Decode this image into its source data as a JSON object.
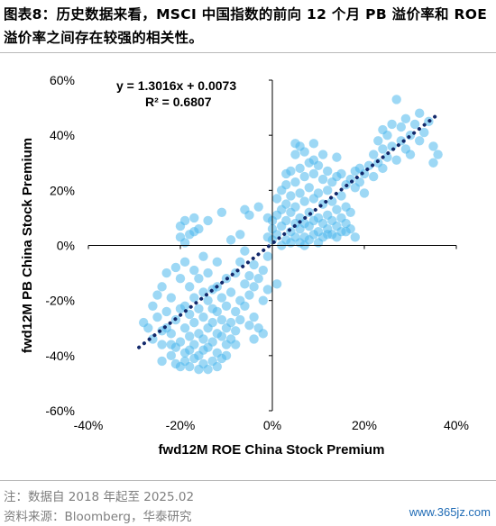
{
  "figure": {
    "title": "图表8：历史数据来看，MSCI 中国指数的前向 12 个月 PB 溢价率和 ROE 溢价率之间存在较强的相关性。"
  },
  "chart_data": {
    "type": "scatter",
    "xlabel": "fwd12M ROE China Stock Premium",
    "ylabel": "fwd12M PB China Stock Premium",
    "xlim": [
      -0.4,
      0.4
    ],
    "ylim": [
      -0.6,
      0.6
    ],
    "x_ticks": [
      -0.4,
      -0.2,
      0.0,
      0.2,
      0.4
    ],
    "y_ticks": [
      -0.6,
      -0.4,
      -0.2,
      0.0,
      0.2,
      0.4,
      0.6
    ],
    "x_tick_labels": [
      "-40%",
      "-20%",
      "0%",
      "20%",
      "40%"
    ],
    "y_tick_labels": [
      "-60%",
      "-40%",
      "-20%",
      "0%",
      "20%",
      "40%",
      "60%"
    ],
    "grid": false,
    "trendline": {
      "equation": "y = 1.3016x + 0.0073",
      "r_squared": "R² = 0.6807",
      "slope": 1.3016,
      "intercept": 0.0073,
      "x_range": [
        -0.29,
        0.36
      ],
      "color": "#13296b"
    },
    "point_color": "#4db8ec",
    "points": [
      [
        -0.28,
        -0.28
      ],
      [
        -0.27,
        -0.3
      ],
      [
        -0.26,
        -0.22
      ],
      [
        -0.26,
        -0.34
      ],
      [
        -0.25,
        -0.26
      ],
      [
        -0.25,
        -0.18
      ],
      [
        -0.24,
        -0.15
      ],
      [
        -0.24,
        -0.36
      ],
      [
        -0.24,
        -0.42
      ],
      [
        -0.23,
        -0.3
      ],
      [
        -0.23,
        -0.1
      ],
      [
        -0.23,
        -0.24
      ],
      [
        -0.22,
        -0.4
      ],
      [
        -0.22,
        -0.32
      ],
      [
        -0.22,
        -0.19
      ],
      [
        -0.21,
        -0.43
      ],
      [
        -0.21,
        -0.37
      ],
      [
        -0.21,
        -0.27
      ],
      [
        -0.21,
        -0.08
      ],
      [
        -0.2,
        -0.44
      ],
      [
        -0.2,
        -0.35
      ],
      [
        -0.2,
        -0.12
      ],
      [
        -0.2,
        0.03
      ],
      [
        -0.2,
        0.07
      ],
      [
        -0.19,
        -0.42
      ],
      [
        -0.19,
        -0.39
      ],
      [
        -0.19,
        -0.3
      ],
      [
        -0.19,
        -0.22
      ],
      [
        -0.19,
        -0.06
      ],
      [
        -0.19,
        0.01
      ],
      [
        -0.18,
        -0.44
      ],
      [
        -0.18,
        -0.38
      ],
      [
        -0.18,
        -0.33
      ],
      [
        -0.18,
        -0.25
      ],
      [
        -0.18,
        -0.15
      ],
      [
        -0.18,
        0.04
      ],
      [
        -0.17,
        -0.41
      ],
      [
        -0.17,
        -0.36
      ],
      [
        -0.17,
        -0.28
      ],
      [
        -0.17,
        -0.19
      ],
      [
        -0.17,
        -0.09
      ],
      [
        -0.17,
        0.05
      ],
      [
        -0.16,
        -0.45
      ],
      [
        -0.16,
        -0.4
      ],
      [
        -0.16,
        -0.32
      ],
      [
        -0.16,
        -0.23
      ],
      [
        -0.16,
        -0.12
      ],
      [
        -0.16,
        0.06
      ],
      [
        -0.15,
        -0.43
      ],
      [
        -0.15,
        -0.38
      ],
      [
        -0.15,
        -0.34
      ],
      [
        -0.15,
        -0.26
      ],
      [
        -0.15,
        -0.17
      ],
      [
        -0.15,
        -0.04
      ],
      [
        -0.14,
        -0.45
      ],
      [
        -0.14,
        -0.37
      ],
      [
        -0.14,
        -0.3
      ],
      [
        -0.14,
        -0.2
      ],
      [
        -0.14,
        -0.1
      ],
      [
        -0.14,
        0.09
      ],
      [
        -0.13,
        -0.42
      ],
      [
        -0.13,
        -0.35
      ],
      [
        -0.13,
        -0.28
      ],
      [
        -0.13,
        -0.16
      ],
      [
        -0.12,
        -0.44
      ],
      [
        -0.12,
        -0.39
      ],
      [
        -0.12,
        -0.32
      ],
      [
        -0.12,
        -0.24
      ],
      [
        -0.12,
        -0.06
      ],
      [
        -0.11,
        -0.41
      ],
      [
        -0.11,
        -0.33
      ],
      [
        -0.11,
        -0.27
      ],
      [
        -0.11,
        -0.19
      ],
      [
        -0.1,
        -0.36
      ],
      [
        -0.1,
        -0.3
      ],
      [
        -0.1,
        -0.22
      ],
      [
        -0.1,
        -0.12
      ],
      [
        -0.09,
        -0.34
      ],
      [
        -0.09,
        -0.28
      ],
      [
        -0.09,
        -0.17
      ],
      [
        -0.08,
        -0.31
      ],
      [
        -0.08,
        -0.24
      ],
      [
        -0.08,
        -0.1
      ],
      [
        -0.07,
        -0.27
      ],
      [
        -0.07,
        -0.2
      ],
      [
        -0.07,
        -0.06
      ],
      [
        -0.06,
        -0.22
      ],
      [
        -0.06,
        -0.14
      ],
      [
        -0.06,
        -0.02
      ],
      [
        -0.05,
        -0.18
      ],
      [
        -0.05,
        -0.29
      ],
      [
        -0.05,
        -0.11
      ],
      [
        -0.04,
        -0.15
      ],
      [
        -0.04,
        -0.26
      ],
      [
        -0.04,
        -0.07
      ],
      [
        -0.03,
        -0.3
      ],
      [
        -0.03,
        -0.12
      ],
      [
        -0.02,
        -0.2
      ],
      [
        -0.02,
        -0.09
      ],
      [
        -0.01,
        -0.16
      ],
      [
        -0.01,
        -0.04
      ],
      [
        -0.11,
        0.12
      ],
      [
        -0.06,
        0.13
      ],
      [
        -0.05,
        0.11
      ],
      [
        -0.03,
        0.14
      ],
      [
        -0.01,
        0.1
      ],
      [
        -0.02,
        -0.32
      ],
      [
        -0.04,
        -0.34
      ],
      [
        -0.2,
        -0.23
      ],
      [
        -0.22,
        -0.36
      ],
      [
        -0.24,
        -0.31
      ],
      [
        -0.13,
        -0.23
      ],
      [
        -0.08,
        -0.36
      ],
      [
        -0.1,
        -0.4
      ],
      [
        -0.12,
        -0.15
      ],
      [
        -0.19,
        0.09
      ],
      [
        -0.17,
        0.1
      ],
      [
        -0.09,
        0.02
      ],
      [
        -0.07,
        0.04
      ],
      [
        0.0,
        0.02
      ],
      [
        -0.01,
        0.03
      ],
      [
        0.0,
        0.06
      ],
      [
        0.0,
        0.09
      ],
      [
        0.01,
        0.04
      ],
      [
        0.01,
        0.11
      ],
      [
        0.01,
        0.17
      ],
      [
        0.02,
        0.0
      ],
      [
        0.02,
        0.07
      ],
      [
        0.02,
        0.13
      ],
      [
        0.02,
        0.2
      ],
      [
        0.03,
        0.02
      ],
      [
        0.03,
        0.09
      ],
      [
        0.03,
        0.15
      ],
      [
        0.03,
        0.22
      ],
      [
        0.04,
        0.05
      ],
      [
        0.04,
        0.12
      ],
      [
        0.04,
        0.18
      ],
      [
        0.04,
        0.27
      ],
      [
        0.05,
        0.03
      ],
      [
        0.05,
        0.08
      ],
      [
        0.05,
        0.14
      ],
      [
        0.05,
        0.23
      ],
      [
        0.05,
        0.33
      ],
      [
        0.06,
        0.01
      ],
      [
        0.06,
        0.06
      ],
      [
        0.06,
        0.1
      ],
      [
        0.06,
        0.19
      ],
      [
        0.06,
        0.28
      ],
      [
        0.06,
        0.36
      ],
      [
        0.07,
        0.03
      ],
      [
        0.07,
        0.08
      ],
      [
        0.07,
        0.16
      ],
      [
        0.07,
        0.25
      ],
      [
        0.07,
        0.34
      ],
      [
        0.08,
        0.02
      ],
      [
        0.08,
        0.07
      ],
      [
        0.08,
        0.12
      ],
      [
        0.08,
        0.21
      ],
      [
        0.08,
        0.3
      ],
      [
        0.09,
        0.04
      ],
      [
        0.09,
        0.09
      ],
      [
        0.09,
        0.17
      ],
      [
        0.09,
        0.26
      ],
      [
        0.09,
        0.37
      ],
      [
        0.1,
        0.05
      ],
      [
        0.1,
        0.1
      ],
      [
        0.1,
        0.19
      ],
      [
        0.1,
        0.29
      ],
      [
        0.11,
        0.03
      ],
      [
        0.11,
        0.08
      ],
      [
        0.11,
        0.15
      ],
      [
        0.11,
        0.24
      ],
      [
        0.11,
        0.33
      ],
      [
        0.12,
        0.06
      ],
      [
        0.12,
        0.11
      ],
      [
        0.12,
        0.2
      ],
      [
        0.12,
        0.27
      ],
      [
        0.13,
        0.04
      ],
      [
        0.13,
        0.09
      ],
      [
        0.13,
        0.16
      ],
      [
        0.13,
        0.23
      ],
      [
        0.14,
        0.07
      ],
      [
        0.14,
        0.13
      ],
      [
        0.14,
        0.25
      ],
      [
        0.14,
        0.32
      ],
      [
        0.15,
        0.05
      ],
      [
        0.15,
        0.1
      ],
      [
        0.15,
        0.18
      ],
      [
        0.15,
        0.26
      ],
      [
        0.16,
        0.08
      ],
      [
        0.16,
        0.14
      ],
      [
        0.16,
        0.22
      ],
      [
        0.17,
        0.06
      ],
      [
        0.17,
        0.12
      ],
      [
        0.17,
        0.24
      ],
      [
        0.18,
        0.21
      ],
      [
        0.18,
        0.27
      ],
      [
        0.19,
        0.23
      ],
      [
        0.19,
        0.28
      ],
      [
        0.2,
        0.19
      ],
      [
        0.2,
        0.26
      ],
      [
        0.21,
        0.29
      ],
      [
        0.22,
        0.25
      ],
      [
        0.22,
        0.33
      ],
      [
        0.23,
        0.3
      ],
      [
        0.23,
        0.38
      ],
      [
        0.24,
        0.28
      ],
      [
        0.24,
        0.35
      ],
      [
        0.25,
        0.32
      ],
      [
        0.25,
        0.4
      ],
      [
        0.26,
        0.36
      ],
      [
        0.26,
        0.44
      ],
      [
        0.27,
        0.53
      ],
      [
        0.27,
        0.31
      ],
      [
        0.28,
        0.38
      ],
      [
        0.28,
        0.43
      ],
      [
        0.29,
        0.35
      ],
      [
        0.29,
        0.46
      ],
      [
        0.3,
        0.4
      ],
      [
        0.3,
        0.33
      ],
      [
        0.31,
        0.44
      ],
      [
        0.32,
        0.38
      ],
      [
        0.32,
        0.48
      ],
      [
        0.33,
        0.41
      ],
      [
        0.34,
        0.45
      ],
      [
        0.35,
        0.3
      ],
      [
        0.35,
        0.36
      ],
      [
        0.36,
        0.33
      ],
      [
        0.04,
        0.01
      ],
      [
        0.05,
        0.37
      ],
      [
        0.12,
        0.04
      ],
      [
        0.14,
        0.03
      ],
      [
        0.16,
        0.05
      ],
      [
        0.18,
        0.03
      ],
      [
        0.07,
        0.0
      ],
      [
        0.1,
        0.01
      ],
      [
        0.03,
        0.26
      ],
      [
        0.09,
        0.31
      ],
      [
        0.01,
        -0.14
      ],
      [
        0.24,
        0.42
      ]
    ]
  },
  "notes": {
    "note_line": "注：数据自 2018 年起至 2025.02",
    "source_line": "资料来源：Bloomberg，华泰研究"
  },
  "watermark": "www.365jz.com"
}
